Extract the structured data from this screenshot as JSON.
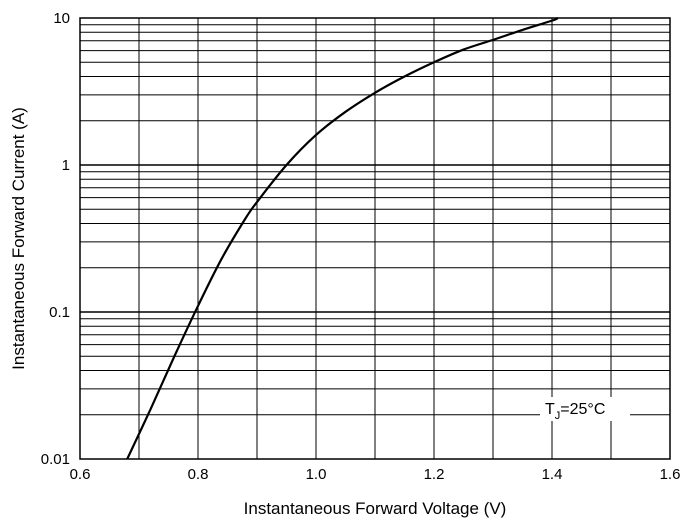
{
  "chart_data": {
    "type": "line",
    "title": "",
    "xlabel": "Instantaneous Forward Voltage (V)",
    "ylabel": "Instantaneous Forward Current (A)",
    "xlim": [
      0.6,
      1.6
    ],
    "ylim": [
      0.01,
      10
    ],
    "yscale": "log",
    "grid": true,
    "x_ticks": [
      "0.6",
      "0.8",
      "1.0",
      "1.2",
      "1.4",
      "1.6"
    ],
    "y_ticks": [
      "0.01",
      "0.1",
      "1",
      "10"
    ],
    "annotation": {
      "main": "T",
      "sub": "J",
      "rest": "=25°C"
    },
    "series": [
      {
        "x": [
          0.68,
          0.72,
          0.76,
          0.8,
          0.84,
          0.88,
          0.9,
          0.95,
          1.0,
          1.05,
          1.1,
          1.15,
          1.2,
          1.25,
          1.3,
          1.35,
          1.4,
          1.41
        ],
        "y": [
          0.01,
          0.022,
          0.05,
          0.11,
          0.23,
          0.43,
          0.56,
          1.0,
          1.6,
          2.3,
          3.1,
          4.0,
          5.0,
          6.1,
          7.1,
          8.3,
          9.6,
          10.0
        ]
      }
    ],
    "colors": {
      "line": "#000000",
      "grid": "#000000",
      "background": "#ffffff"
    }
  }
}
